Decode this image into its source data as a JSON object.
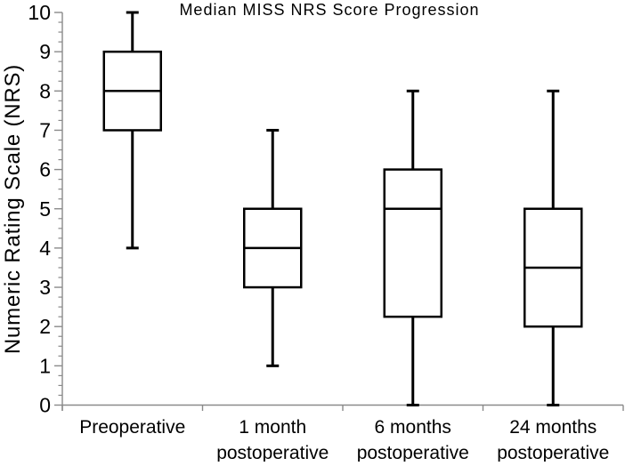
{
  "chart_data": {
    "type": "boxplot",
    "title": "Median MISS NRS Score Progression",
    "ylabel": "Numeric Rating Scale (NRS)",
    "xlabel": "",
    "ylim": [
      0,
      10
    ],
    "ytick_step": 1,
    "yminor_step": 0.25,
    "ytick_labels": [
      "0",
      "1",
      "2",
      "3",
      "4",
      "5",
      "6",
      "7",
      "8",
      "9",
      "10"
    ],
    "grid": false,
    "legend": "none",
    "categories": [
      "Preoperative",
      "1 month postoperative",
      "6 months postoperative",
      "24 months postoperative"
    ],
    "category_label_lines": [
      [
        "Preoperative"
      ],
      [
        "1 month",
        "postoperative"
      ],
      [
        "6 months",
        "postoperative"
      ],
      [
        "24 months",
        "postoperative"
      ]
    ],
    "series": [
      {
        "name": "Preoperative",
        "whisker_low": 4,
        "q1": 7,
        "median": 8,
        "q3": 9,
        "whisker_high": 10
      },
      {
        "name": "1 month postoperative",
        "whisker_low": 1,
        "q1": 3,
        "median": 4,
        "q3": 5,
        "whisker_high": 7
      },
      {
        "name": "6 months postoperative",
        "whisker_low": 0,
        "q1": 2.25,
        "median": 5,
        "q3": 6,
        "whisker_high": 8
      },
      {
        "name": "24 months postoperative",
        "whisker_low": 0,
        "q1": 2,
        "median": 3.5,
        "q3": 5,
        "whisker_high": 8
      }
    ],
    "colors": {
      "background": "#ffffff",
      "box_stroke": "#000000",
      "box_fill": "#ffffff",
      "median": "#000000",
      "whisker": "#000000",
      "axis": "#8a8a8a",
      "text": "#000000"
    }
  }
}
